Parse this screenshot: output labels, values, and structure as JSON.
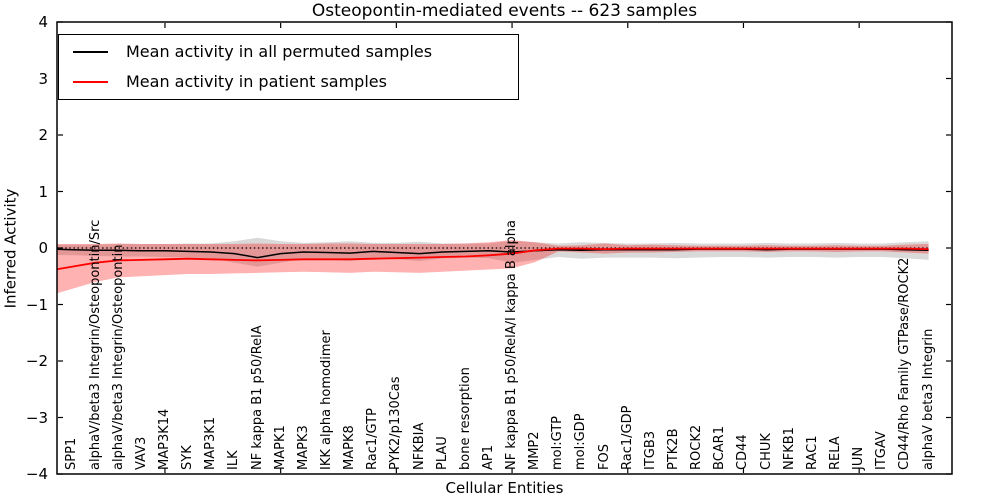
{
  "chart_data": {
    "type": "line",
    "title": "Osteopontin-mediated events -- 623 samples",
    "xlabel": "Cellular Entities",
    "ylabel": "Inferred Activity",
    "ylim": [
      -4,
      4
    ],
    "yticks": [
      4,
      3,
      2,
      1,
      0,
      -1,
      -2,
      -3,
      -4
    ],
    "x_major_tick_step": 5,
    "grid": false,
    "legend_position": "upper left",
    "colors": {
      "permuted_line": "#000000",
      "patient_line": "#ff0000",
      "permuted_band": "rgba(0,0,0,0.15)",
      "patient_band": "rgba(255,0,0,0.30)",
      "zero_line": "#000000"
    },
    "zero_line": {
      "y": 0,
      "style": "dotted"
    },
    "categories": [
      "SPP1",
      "alphaV/beta3 Integrin/Osteopontin/Src",
      "alphaV/beta3 Integrin/Osteopontin",
      "VAV3",
      "MAP3K14",
      "SYK",
      "MAP3K1",
      "ILK",
      "NF kappa B1 p50/RelA",
      "MAPK1",
      "MAPK3",
      "IKK alpha homodimer",
      "MAPK8",
      "Rac1/GTP",
      "PYK2/p130Cas",
      "NFKBIA",
      "PLAU",
      "bone resorption",
      "AP1",
      "NF kappa B1 p50/RelA/I kappa B alpha",
      "MMP2",
      "mol:GTP",
      "mol:GDP",
      "FOS",
      "Rac1/GDP",
      "ITGB3",
      "PTK2B",
      "ROCK2",
      "BCAR1",
      "CD44",
      "CHUK",
      "NFKB1",
      "RAC1",
      "RELA",
      "JUN",
      "ITGAV",
      "CD44/Rho Family GTPase/ROCK2",
      "alphaV beta3 Integrin"
    ],
    "series": [
      {
        "name": "Mean activity in all permuted samples",
        "color": "#000000",
        "values": [
          -0.03,
          -0.04,
          -0.04,
          -0.05,
          -0.05,
          -0.06,
          -0.07,
          -0.1,
          -0.17,
          -0.1,
          -0.07,
          -0.08,
          -0.09,
          -0.06,
          -0.08,
          -0.1,
          -0.07,
          -0.06,
          -0.05,
          -0.07,
          -0.05,
          -0.03,
          -0.04,
          -0.03,
          -0.03,
          -0.03,
          -0.03,
          -0.02,
          -0.02,
          -0.02,
          -0.03,
          -0.02,
          -0.02,
          -0.02,
          -0.02,
          -0.02,
          -0.03,
          -0.04
        ],
        "band_upper": [
          0.06,
          0.06,
          0.07,
          0.07,
          0.07,
          0.08,
          0.08,
          0.12,
          0.18,
          0.12,
          0.09,
          0.1,
          0.12,
          0.09,
          0.09,
          0.11,
          0.08,
          0.08,
          0.08,
          0.13,
          0.1,
          0.08,
          0.1,
          0.09,
          0.08,
          0.08,
          0.09,
          0.08,
          0.08,
          0.08,
          0.09,
          0.08,
          0.08,
          0.09,
          0.08,
          0.08,
          0.1,
          0.12
        ],
        "band_lower": [
          -0.13,
          -0.14,
          -0.15,
          -0.15,
          -0.16,
          -0.17,
          -0.18,
          -0.26,
          -0.33,
          -0.26,
          -0.19,
          -0.21,
          -0.23,
          -0.19,
          -0.2,
          -0.23,
          -0.18,
          -0.17,
          -0.18,
          -0.26,
          -0.21,
          -0.16,
          -0.19,
          -0.17,
          -0.17,
          -0.17,
          -0.18,
          -0.17,
          -0.16,
          -0.16,
          -0.17,
          -0.16,
          -0.16,
          -0.17,
          -0.16,
          -0.16,
          -0.18,
          -0.21
        ]
      },
      {
        "name": "Mean activity in patient samples",
        "color": "#ff0000",
        "values": [
          -0.33,
          -0.26,
          -0.22,
          -0.21,
          -0.2,
          -0.19,
          -0.2,
          -0.21,
          -0.22,
          -0.21,
          -0.2,
          -0.2,
          -0.2,
          -0.19,
          -0.18,
          -0.17,
          -0.16,
          -0.15,
          -0.13,
          -0.1,
          -0.04,
          -0.01,
          -0.01,
          -0.02,
          -0.01,
          -0.01,
          -0.01,
          -0.01,
          -0.01,
          -0.01,
          -0.01,
          -0.01,
          -0.01,
          -0.01,
          -0.01,
          -0.01,
          -0.01,
          -0.02
        ],
        "band_upper": [
          0.07,
          0.07,
          0.08,
          0.07,
          0.07,
          0.07,
          0.07,
          0.07,
          0.08,
          0.07,
          0.07,
          0.08,
          0.08,
          0.07,
          0.07,
          0.07,
          0.07,
          0.08,
          0.1,
          0.14,
          0.1,
          0.04,
          0.05,
          0.08,
          0.05,
          0.06,
          0.05,
          0.04,
          0.04,
          0.04,
          0.05,
          0.04,
          0.04,
          0.05,
          0.04,
          0.04,
          0.06,
          0.07
        ],
        "band_lower": [
          -0.72,
          -0.6,
          -0.52,
          -0.5,
          -0.48,
          -0.46,
          -0.46,
          -0.45,
          -0.44,
          -0.43,
          -0.42,
          -0.43,
          -0.44,
          -0.42,
          -0.43,
          -0.44,
          -0.42,
          -0.4,
          -0.38,
          -0.36,
          -0.25,
          -0.06,
          -0.08,
          -0.1,
          -0.08,
          -0.08,
          -0.07,
          -0.06,
          -0.06,
          -0.06,
          -0.07,
          -0.06,
          -0.06,
          -0.07,
          -0.06,
          -0.06,
          -0.08,
          -0.1
        ]
      }
    ]
  }
}
